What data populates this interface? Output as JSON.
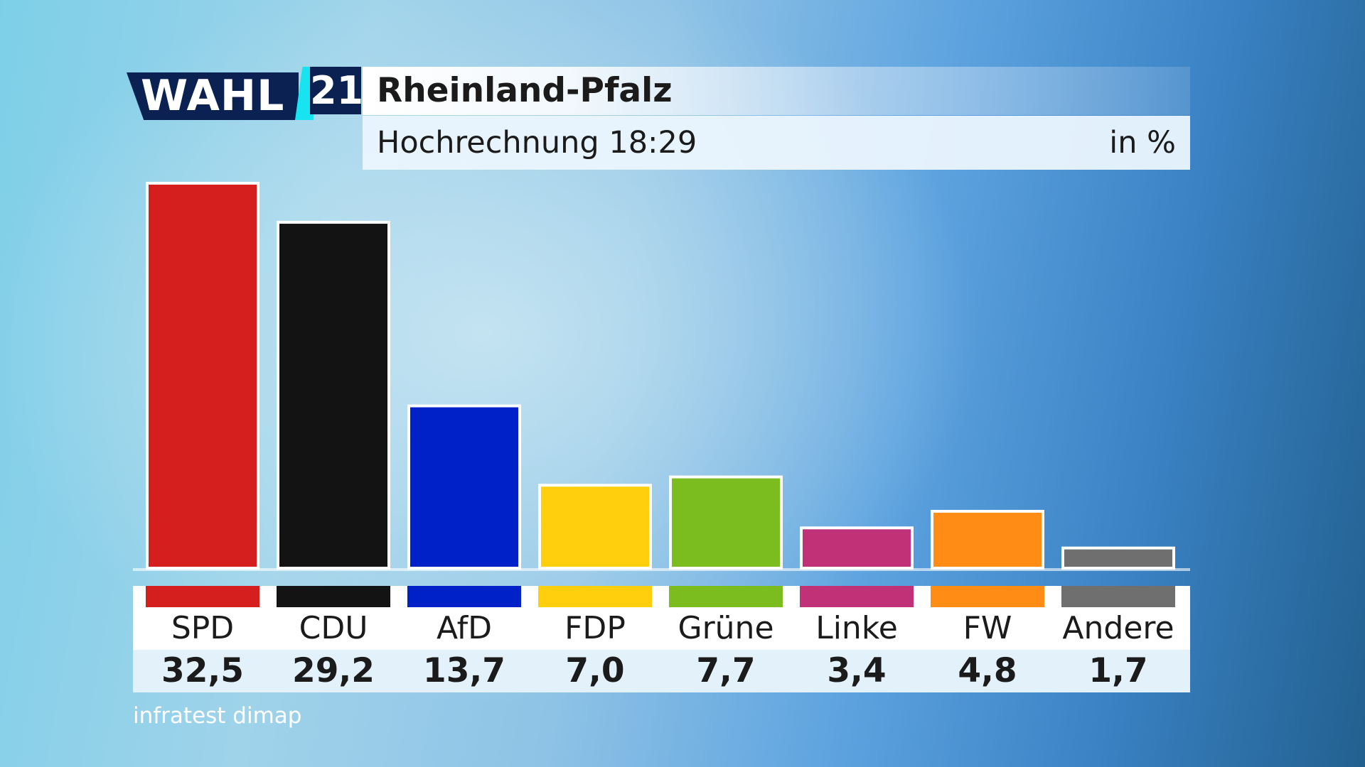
{
  "header": {
    "logo_word": "WAHL",
    "logo_number": "21",
    "title": "Rheinland-Pfalz",
    "subtitle": "Hochrechnung 18:29",
    "unit": "in %"
  },
  "chart_data": {
    "type": "bar",
    "title": "Rheinland-Pfalz",
    "subtitle": "Hochrechnung 18:29",
    "ylabel": "in %",
    "ylim": [
      0,
      32.5
    ],
    "grid": false,
    "categories": [
      "SPD",
      "CDU",
      "AfD",
      "FDP",
      "Grüne",
      "Linke",
      "FW",
      "Andere"
    ],
    "values": [
      32.5,
      29.2,
      13.7,
      7.0,
      7.7,
      3.4,
      4.8,
      1.7
    ],
    "value_labels": [
      "32,5",
      "29,2",
      "13,7",
      "7,0",
      "7,7",
      "3,4",
      "4,8",
      "1,7"
    ],
    "colors": [
      "#d51f1f",
      "#131313",
      "#0021c8",
      "#ffce0c",
      "#7bbd1e",
      "#c03177",
      "#ff8c15",
      "#6f6f6f"
    ]
  },
  "source": "infratest dimap"
}
